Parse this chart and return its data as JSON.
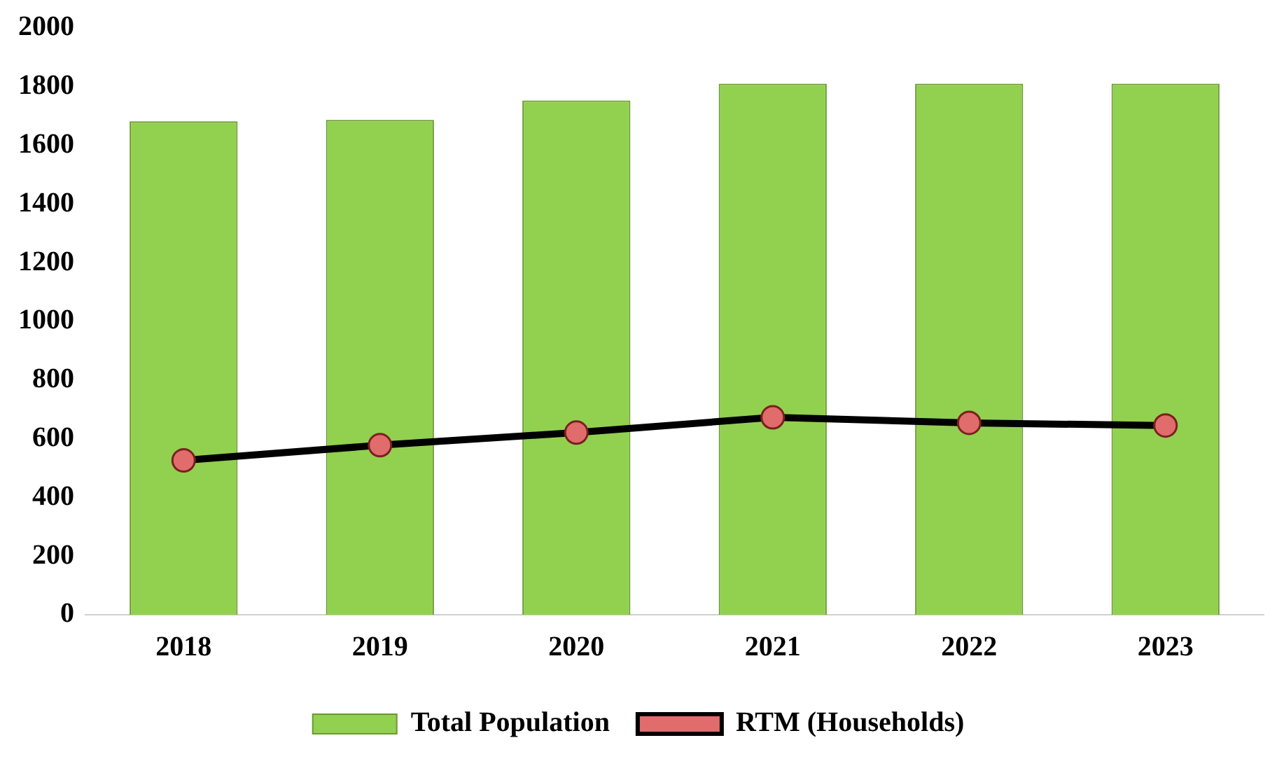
{
  "chart_data": {
    "type": "bar",
    "categories": [
      "2018",
      "2019",
      "2020",
      "2021",
      "2022",
      "2023"
    ],
    "series": [
      {
        "name": "Total Population",
        "color": "#92d050",
        "values": [
          1682,
          1687,
          1753,
          1810,
          1810,
          1810
        ]
      },
      {
        "name": "RTM (Households)",
        "type": "line",
        "color": "#000000",
        "marker": "circle",
        "values": [
          526,
          578,
          621,
          673,
          654,
          645
        ]
      }
    ],
    "ylim": [
      0,
      2000
    ],
    "yticks": [
      0,
      200,
      400,
      600,
      800,
      1000,
      1200,
      1400,
      1600,
      1800,
      2000
    ],
    "grid": false,
    "legend": "bottom"
  }
}
